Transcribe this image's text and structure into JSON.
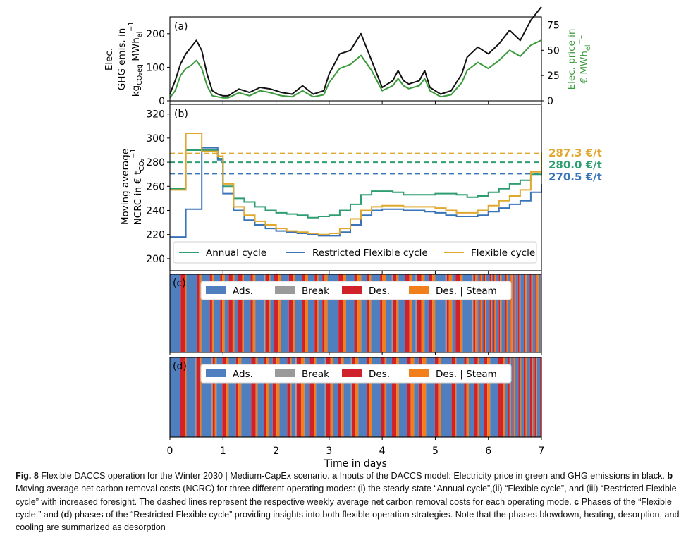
{
  "figure": {
    "time_axis": {
      "label": "Time in days",
      "range": [
        0,
        7
      ],
      "ticks": [
        "0",
        "1",
        "2",
        "3",
        "4",
        "5",
        "6",
        "7"
      ]
    },
    "panels": [
      {
        "id": "a",
        "label": "(a)",
        "left_axis": {
          "label_lines": [
            "Elec.",
            "GHG emis. in",
            "kg",
            "CO₂eq",
            "MWh",
            "el",
            "−1"
          ],
          "range": [
            0,
            250
          ],
          "ticks": [
            0,
            100,
            200
          ]
        },
        "right_axis": {
          "label_lines": [
            "Elec. price in",
            "€ MWh",
            "el",
            "−1"
          ],
          "range": [
            0,
            83
          ],
          "ticks": [
            0,
            25,
            50,
            75
          ],
          "color": "#3b9a3b"
        },
        "series": [
          {
            "color": "#111111",
            "x": [
              0,
              0.1,
              0.2,
              0.3,
              0.4,
              0.5,
              0.6,
              0.7,
              0.8,
              0.9,
              1.0,
              1.1,
              1.3,
              1.5,
              1.7,
              1.9,
              2.1,
              2.3,
              2.5,
              2.7,
              2.9,
              3.0,
              3.2,
              3.4,
              3.6,
              3.8,
              4.0,
              4.2,
              4.3,
              4.4,
              4.5,
              4.7,
              4.8,
              4.9,
              5.1,
              5.3,
              5.5,
              5.6,
              5.8,
              6.0,
              6.2,
              6.4,
              6.6,
              6.8,
              7.0
            ],
            "y": [
              20,
              60,
              110,
              140,
              160,
              180,
              150,
              80,
              30,
              20,
              15,
              15,
              35,
              25,
              40,
              35,
              25,
              20,
              45,
              20,
              30,
              80,
              140,
              150,
              200,
              120,
              40,
              60,
              90,
              60,
              50,
              60,
              90,
              40,
              20,
              30,
              80,
              130,
              160,
              140,
              170,
              210,
              180,
              240,
              280
            ]
          },
          {
            "color": "#3b9a3b",
            "x": [
              0,
              0.1,
              0.2,
              0.3,
              0.4,
              0.5,
              0.6,
              0.7,
              0.8,
              0.9,
              1.0,
              1.1,
              1.3,
              1.5,
              1.7,
              1.9,
              2.1,
              2.3,
              2.5,
              2.7,
              2.9,
              3.0,
              3.2,
              3.4,
              3.6,
              3.8,
              4.0,
              4.2,
              4.3,
              4.4,
              4.5,
              4.7,
              4.8,
              4.9,
              5.1,
              5.3,
              5.5,
              5.6,
              5.8,
              6.0,
              6.2,
              6.4,
              6.6,
              6.8,
              7.0
            ],
            "y": [
              3,
              10,
              25,
              32,
              35,
              40,
              32,
              15,
              5,
              4,
              3,
              3,
              8,
              5,
              10,
              8,
              5,
              4,
              10,
              4,
              6,
              18,
              32,
              36,
              45,
              30,
              10,
              15,
              22,
              15,
              12,
              15,
              22,
              10,
              4,
              6,
              18,
              30,
              38,
              32,
              40,
              50,
              44,
              55,
              60
            ]
          }
        ]
      },
      {
        "id": "b",
        "label": "(b)",
        "y_axis": {
          "label_lines": [
            "Moving average",
            "NCRC in € t",
            "CO₂",
            "−1"
          ],
          "range": [
            190,
            328
          ],
          "ticks": [
            200,
            220,
            240,
            260,
            280,
            300,
            320
          ]
        },
        "series": [
          {
            "name": "Annual cycle",
            "color": "#2e9e70",
            "average": 280.0,
            "average_label": "280.0 €/t",
            "x": [
              0,
              0.3,
              0.6,
              0.9,
              1.0,
              1.2,
              1.4,
              1.6,
              1.8,
              2.0,
              2.2,
              2.4,
              2.6,
              2.8,
              3.0,
              3.2,
              3.4,
              3.6,
              3.8,
              4.0,
              4.2,
              4.4,
              4.6,
              4.8,
              5.0,
              5.2,
              5.4,
              5.6,
              5.8,
              6.0,
              6.2,
              6.4,
              6.6,
              6.8,
              7.0
            ],
            "y": [
              258,
              290,
              290,
              283,
              260,
              250,
              247,
              243,
              240,
              238,
              237,
              236,
              234,
              235,
              236,
              240,
              245,
              253,
              256,
              256,
              255,
              253,
              253,
              253,
              254,
              254,
              253,
              251,
              252,
              255,
              258,
              262,
              265,
              270,
              280
            ]
          },
          {
            "name": "Restricted Flexible cycle",
            "color": "#3a74b8",
            "average": 270.5,
            "average_label": "270.5 €/t",
            "x": [
              0,
              0.3,
              0.6,
              0.9,
              1.0,
              1.2,
              1.4,
              1.6,
              1.8,
              2.0,
              2.2,
              2.4,
              2.6,
              2.8,
              3.0,
              3.2,
              3.4,
              3.6,
              3.8,
              4.0,
              4.2,
              4.4,
              4.6,
              4.8,
              5.0,
              5.2,
              5.4,
              5.6,
              5.8,
              6.0,
              6.2,
              6.4,
              6.6,
              6.8,
              7.0
            ],
            "y": [
              218,
              241,
              292,
              282,
              254,
              240,
              232,
              228,
              225,
              223,
              222,
              221,
              220,
              219,
              219,
              222,
              228,
              236,
              240,
              241,
              241,
              240,
              240,
              239,
              238,
              236,
              235,
              235,
              236,
              239,
              242,
              245,
              248,
              255,
              262
            ]
          },
          {
            "name": "Flexible cycle",
            "color": "#e0a82e",
            "average": 287.3,
            "average_label": "287.3 €/t",
            "x": [
              0,
              0.3,
              0.6,
              0.9,
              1.0,
              1.2,
              1.4,
              1.6,
              1.8,
              2.0,
              2.2,
              2.4,
              2.6,
              2.8,
              3.0,
              3.2,
              3.4,
              3.6,
              3.8,
              4.0,
              4.2,
              4.4,
              4.6,
              4.8,
              5.0,
              5.2,
              5.4,
              5.6,
              5.8,
              6.0,
              6.2,
              6.4,
              6.6,
              6.8,
              7.0
            ],
            "y": [
              257,
              304,
              289,
              285,
              262,
              243,
              236,
              231,
              228,
              225,
              223,
              222,
              221,
              220,
              221,
              225,
              233,
              240,
              243,
              244,
              244,
              243,
              243,
              243,
              242,
              240,
              238,
              238,
              240,
              244,
              248,
              252,
              257,
              272,
              288
            ]
          }
        ]
      }
    ],
    "phase_panels": [
      {
        "id": "c",
        "label": "(c)",
        "flex_start": 5.55,
        "seed": 17
      },
      {
        "id": "d",
        "label": "(d)",
        "flex_start": 6.3,
        "seed": 41
      }
    ],
    "phase_legend": [
      {
        "label": "Ads.",
        "color": "#4f7fbf"
      },
      {
        "label": "Break",
        "color": "#9a9a9a"
      },
      {
        "label": "Des.",
        "color": "#d1222b"
      },
      {
        "label": "Des. | Steam",
        "color": "#f07f1c"
      }
    ]
  },
  "caption": {
    "fig_label": "Fig. 8",
    "title": "Flexible DACCS operation for the Winter 2030 | Medium-CapEx scenario.",
    "a_label": "a",
    "a_text": "Inputs of the DACCS model: Electricity price in green and GHG emissions in black.",
    "b_label": "b",
    "b_text": "Moving average net carbon removal costs (NCRC) for three different operating modes: (i) the steady-state “Annual cycle”,(ii) “Flexible cycle”, and (iii) “Restricted Flexible cycle” with increased foresight. The dashed lines represent the respective weekly average net carbon removal costs for each operating mode.",
    "c_label": "c",
    "c_text": "Phases of the “Flexible cycle,” and (",
    "d_label": "d",
    "d_text": ") phases of the “Restricted Flexible cycle” providing insights into both flexible operation strategies. Note that the phases blowdown, heating, desorption, and cooling are summarized as desorption"
  }
}
